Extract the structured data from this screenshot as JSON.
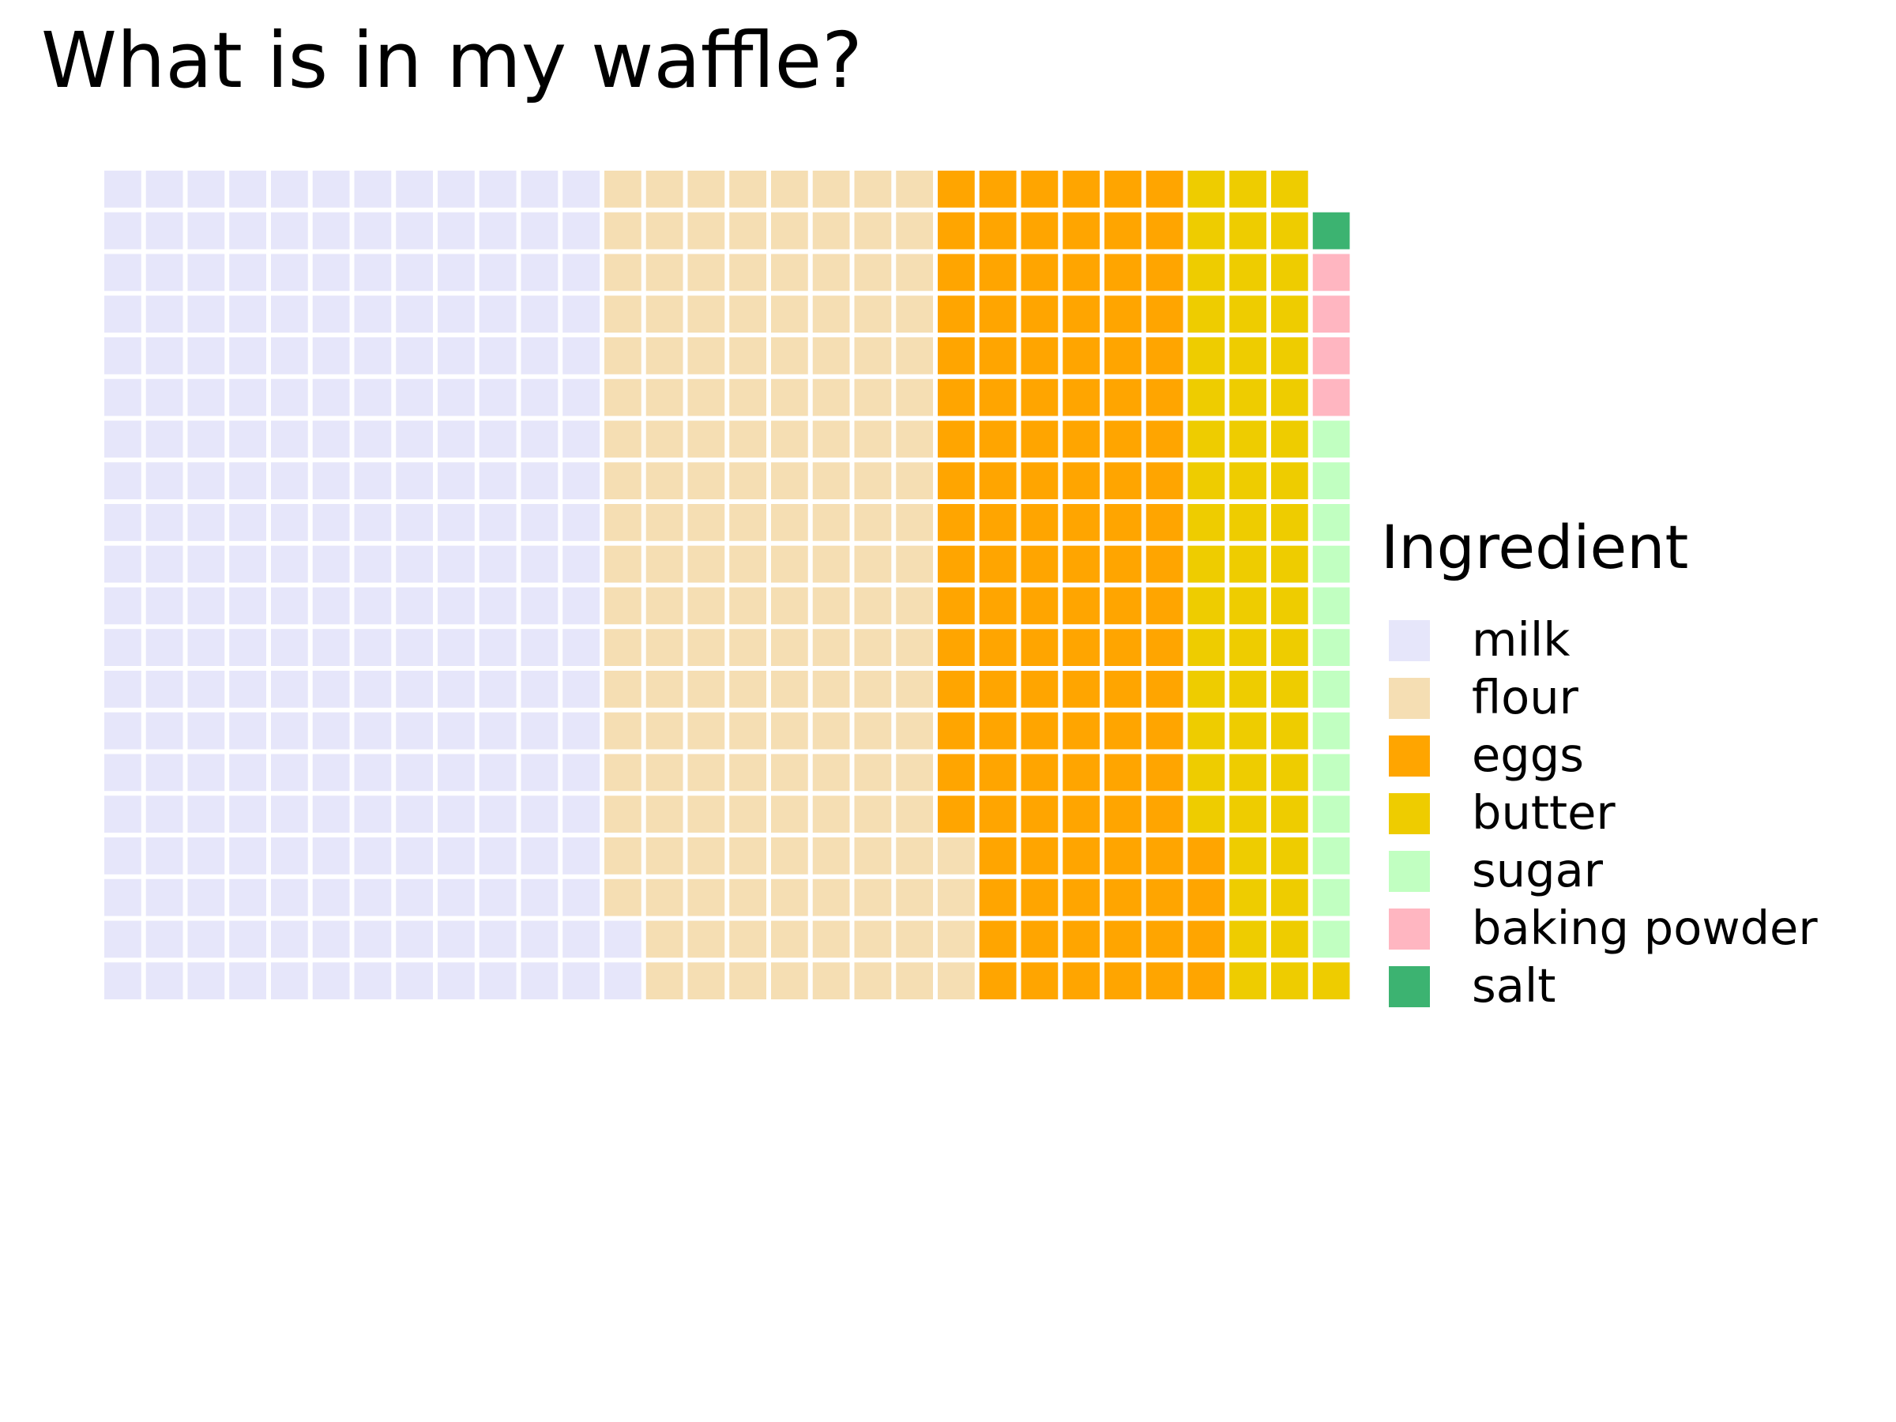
{
  "title": "What is in my waffle?",
  "legend": {
    "title": "Ingredient",
    "placement": "right"
  },
  "chart_data": {
    "type": "waffle",
    "title": "What is in my waffle?",
    "legend_title": "Ingredient",
    "grid": {
      "rows": 20,
      "cols": 29,
      "fill_direction": "column-wise from bottom-left"
    },
    "categories": [
      "milk",
      "flour",
      "eggs",
      "butter",
      "sugar",
      "baking powder",
      "salt"
    ],
    "values": [
      242,
      162,
      120,
      57,
      13,
      4,
      1
    ],
    "colors": [
      "#e6e6fa",
      "#f5deb3",
      "#ffa500",
      "#eecc00",
      "#c1ffc1",
      "#ffb6c1",
      "#3cb371"
    ]
  }
}
